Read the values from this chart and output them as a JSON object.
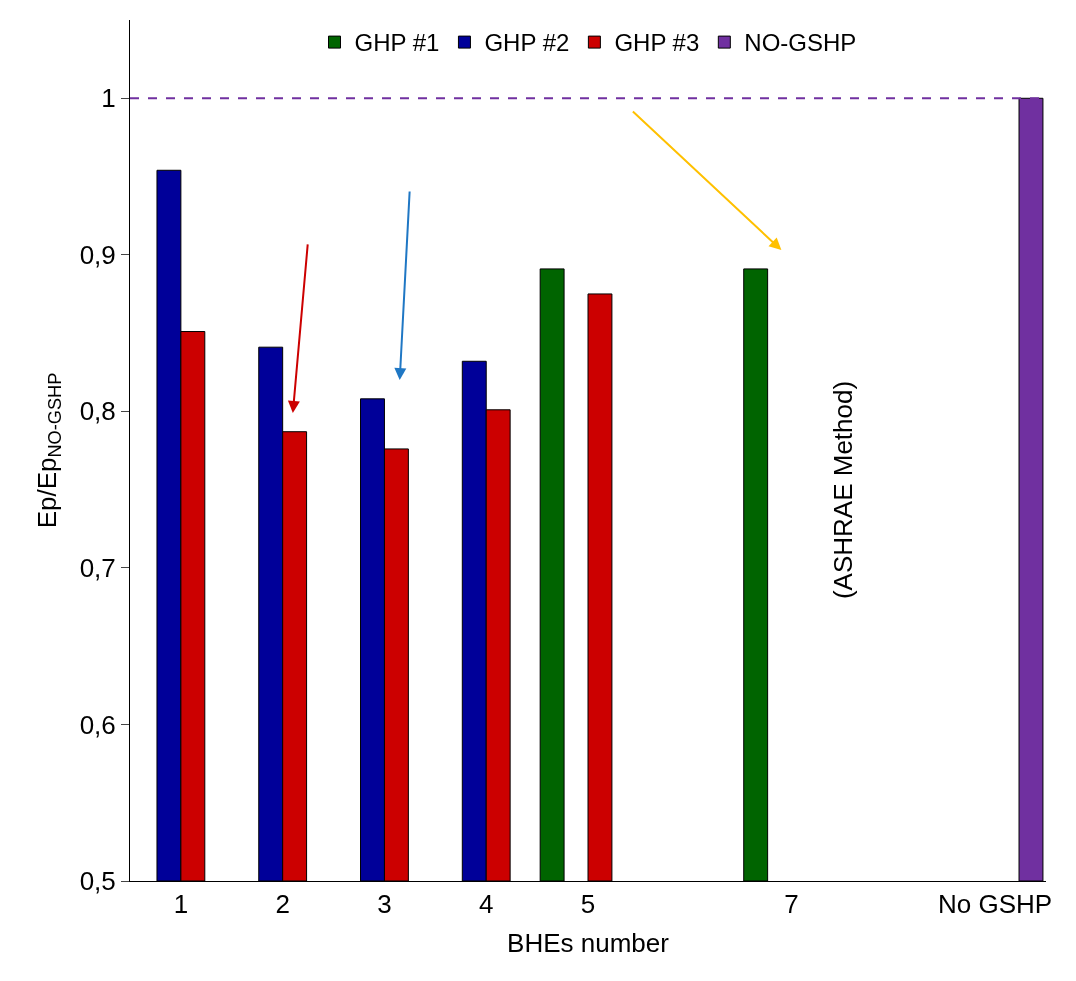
{
  "chart_data": {
    "type": "bar",
    "xlabel": "BHEs number",
    "ylabel": "Ep/Ep$_{NO-GSHP}$",
    "categories": [
      "1",
      "2",
      "3",
      "4",
      "5",
      null,
      "7",
      null,
      "No GSHP"
    ],
    "series": [
      {
        "name": "GHP #1",
        "color": "#006400",
        "values": [
          null,
          null,
          null,
          null,
          0.891,
          null,
          0.891,
          null,
          null
        ]
      },
      {
        "name": "GHP #2",
        "color": "#000099",
        "values": [
          0.954,
          0.841,
          0.808,
          0.832,
          null,
          null,
          null,
          null,
          null
        ]
      },
      {
        "name": "GHP #3",
        "color": "#cc0000",
        "values": [
          0.851,
          0.787,
          0.776,
          0.801,
          0.875,
          null,
          null,
          null,
          null
        ]
      },
      {
        "name": "NO-GSHP",
        "color": "#7030a0",
        "values": [
          null,
          null,
          null,
          null,
          null,
          null,
          null,
          null,
          1.0
        ]
      }
    ],
    "ylim": [
      0.5,
      1.05
    ],
    "yticks": [
      {
        "value": 0.5,
        "label": "0,5"
      },
      {
        "value": 0.6,
        "label": "0,6"
      },
      {
        "value": 0.7,
        "label": "0,7"
      },
      {
        "value": 0.8,
        "label": "0,8"
      },
      {
        "value": 0.9,
        "label": "0,9"
      },
      {
        "value": 1,
        "label": "1"
      }
    ],
    "ref_lines": [
      {
        "axis": "y",
        "value": 1,
        "color": "#7030a0",
        "line_style": "dashed"
      }
    ],
    "annotations": [
      "(ASHRAE Method)"
    ],
    "legend": "top"
  }
}
